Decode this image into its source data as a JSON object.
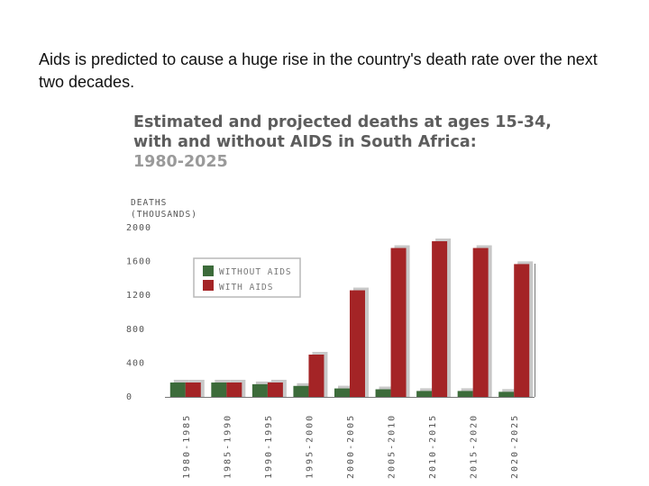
{
  "caption": "Aids is predicted to cause a huge rise in the country's death rate over the next two decades.",
  "colors": {
    "without": "#3c6b3a",
    "with": "#a42426",
    "shadow": "#c8c8c8",
    "axis": "#777777"
  },
  "chart_data": {
    "type": "bar",
    "title_line1": "Estimated and projected deaths at ages 15-34,",
    "title_line2": "with and without AIDS in South Africa:",
    "title_line3": "1980-2025",
    "ylabel_line1": "DEATHS",
    "ylabel_line2": "(THOUSANDS)",
    "yticks": [
      0,
      400,
      800,
      1200,
      1600,
      2000
    ],
    "ylim": [
      0,
      2000
    ],
    "grid": false,
    "legend_position": "top-left",
    "categories": [
      "1980-1985",
      "1985-1990",
      "1990-1995",
      "1995-2000",
      "2000-2005",
      "2005-2010",
      "2010-2015",
      "2015-2020",
      "2020-2025"
    ],
    "series": [
      {
        "name": "WITHOUT AIDS",
        "values": [
          170,
          170,
          150,
          130,
          100,
          90,
          70,
          70,
          60
        ]
      },
      {
        "name": "WITH AIDS",
        "values": [
          170,
          170,
          170,
          500,
          1260,
          1760,
          1840,
          1760,
          1570
        ]
      }
    ]
  }
}
